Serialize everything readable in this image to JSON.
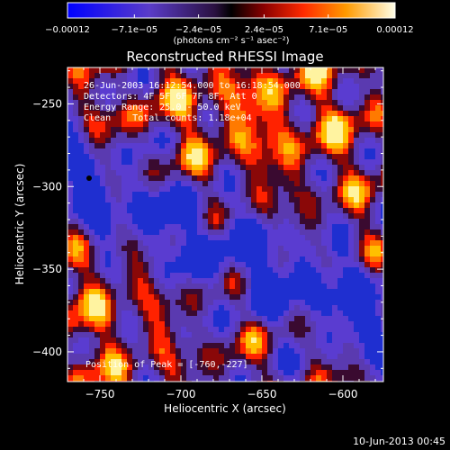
{
  "chart_data": {
    "type": "heatmap",
    "title": "Reconstructed RHESSI Image",
    "xlabel": "Heliocentric X (arcsec)",
    "ylabel": "Heliocentric Y (arcsec)",
    "xlim": [
      -770,
      -575
    ],
    "ylim": [
      -418,
      -228
    ],
    "x_ticks": [
      -750,
      -700,
      -650,
      -600
    ],
    "x_tick_labels": [
      "−750",
      "−700",
      "−650",
      "−600"
    ],
    "y_ticks": [
      -250,
      -300,
      -350,
      -400
    ],
    "y_tick_labels": [
      "−250",
      "−300",
      "−350",
      "−400"
    ],
    "colorbar": {
      "range": [
        -0.00012,
        0.00012
      ],
      "tick_values": [
        -0.00012,
        -7.1e-05,
        -2.4e-05,
        2.4e-05,
        7.1e-05,
        0.00012
      ],
      "tick_labels": [
        "−0.00012",
        "−7.1e−05",
        "−2.4e−05",
        "2.4e−05",
        "7.1e−05",
        "0.00012"
      ],
      "unit_label": "(photons cm⁻² s⁻¹ asec⁻²)"
    },
    "annotations": [
      "26-Jun-2003 16:12:54.000 to 16:18:54.000",
      "Detectors: 4F 5F 6F 7F 8F, Att 0",
      "Energy Range: 25.0 - 50.0 keV",
      "Clean    Total counts: 1.18e+04"
    ],
    "peak_label": "Position of Peak = [-760,-227]",
    "peak": [
      -760,
      -227
    ],
    "footer_date": "10-Jun-2013 00:45"
  }
}
